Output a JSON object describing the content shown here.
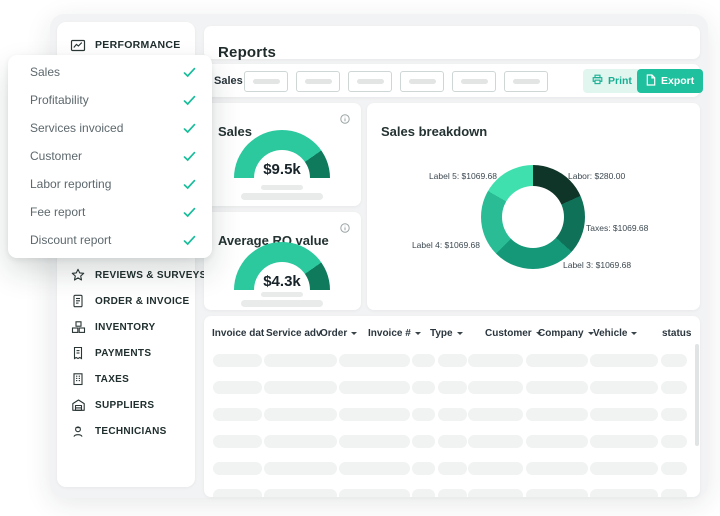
{
  "app": {
    "page_title": "Reports"
  },
  "sidebar": {
    "performance": {
      "label": "PERFORMANCE"
    },
    "items": [
      {
        "label": "REVIEWS & SURVEYS"
      },
      {
        "label": "ORDER & INVOICE"
      },
      {
        "label": "INVENTORY"
      },
      {
        "label": "PAYMENTS"
      },
      {
        "label": "TAXES"
      },
      {
        "label": "SUPPLIERS"
      },
      {
        "label": "TECHNICIANS"
      }
    ]
  },
  "report_menu": {
    "items": [
      {
        "label": "Sales",
        "checked": true
      },
      {
        "label": "Profitability",
        "checked": true
      },
      {
        "label": "Services invoiced",
        "checked": true
      },
      {
        "label": "Customer",
        "checked": true
      },
      {
        "label": "Labor reporting",
        "checked": true
      },
      {
        "label": "Fee report",
        "checked": true
      },
      {
        "label": "Discount report",
        "checked": true
      }
    ]
  },
  "toolbar": {
    "filter_label": "Sales",
    "placeholder_count": 6,
    "print_label": "Print",
    "export_label": "Export"
  },
  "colors": {
    "accent": "#1abc9c",
    "gauge_main": "#2cc89e",
    "gauge_dark": "#107a5c",
    "export_bg": "#1ec09d",
    "print_bg": "#e2f6f0",
    "print_text": "#16ae92"
  },
  "chart_data": [
    {
      "type": "gauge",
      "title": "Sales",
      "value_label": "$9.5k",
      "sweep_deg": 180,
      "segments": [
        {
          "color": "#2cc89e",
          "from_deg": 0,
          "to_deg": 145
        },
        {
          "color": "#107a5c",
          "from_deg": 145,
          "to_deg": 180
        }
      ]
    },
    {
      "type": "gauge",
      "title": "Average RO value",
      "value_label": "$4.3k",
      "sweep_deg": 180,
      "segments": [
        {
          "color": "#2cc89e",
          "from_deg": 0,
          "to_deg": 145
        },
        {
          "color": "#107a5c",
          "from_deg": 145,
          "to_deg": 180
        }
      ]
    },
    {
      "type": "donut",
      "title": "Sales breakdown",
      "segments": [
        {
          "label": "Labor",
          "value": 280.0,
          "label_text": "Labor: $280.00",
          "color": "#0e3528",
          "from_deg": 0,
          "to_deg": 66
        },
        {
          "label": "Taxes",
          "value": 1069.68,
          "label_text": "Taxes: $1069.68",
          "color": "#0f7258",
          "from_deg": 66,
          "to_deg": 132
        },
        {
          "label": "Label 3",
          "value": 1069.68,
          "label_text": "Label 3: $1069.68",
          "color": "#149878",
          "from_deg": 132,
          "to_deg": 225
        },
        {
          "label": "Label 4",
          "value": 1069.68,
          "label_text": "Label 4: $1069.68",
          "color": "#29bc95",
          "from_deg": 225,
          "to_deg": 300
        },
        {
          "label": "Label 5",
          "value": 1069.68,
          "label_text": "Label 5: $1069.68",
          "color": "#3fdfae",
          "from_deg": 300,
          "to_deg": 360
        }
      ]
    }
  ],
  "table": {
    "columns": [
      {
        "label": "Invoice dat",
        "sortable": false
      },
      {
        "label": "Service adv",
        "sortable": false
      },
      {
        "label": "Order",
        "sortable": true
      },
      {
        "label": "Invoice #",
        "sortable": true
      },
      {
        "label": "Type",
        "sortable": true
      },
      {
        "label": "Customer",
        "sortable": true
      },
      {
        "label": "Company",
        "sortable": true
      },
      {
        "label": "Vehicle",
        "sortable": true
      },
      {
        "label": "status",
        "sortable": false
      }
    ],
    "placeholder_row_count": 6
  }
}
